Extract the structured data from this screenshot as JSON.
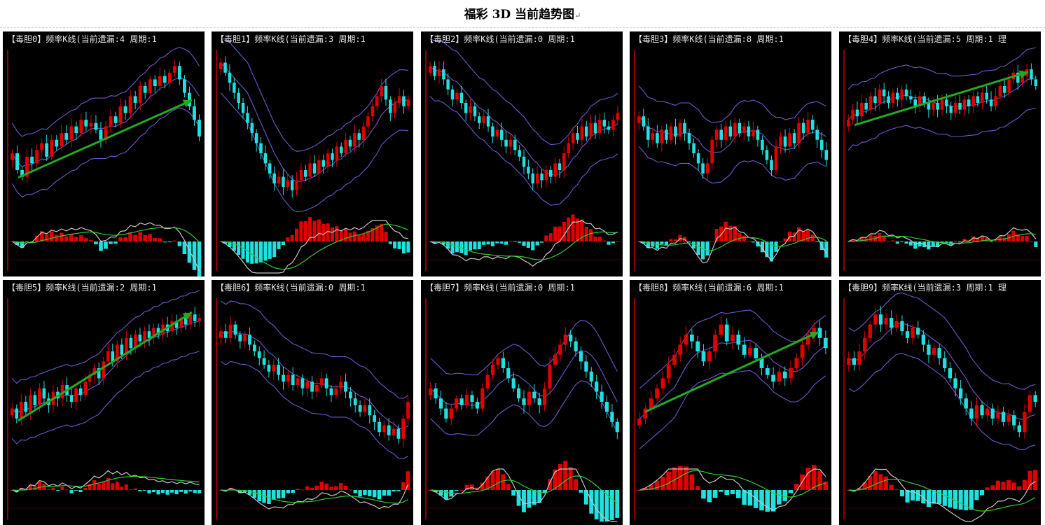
{
  "page": {
    "title": "福彩 3D 当前趋势图",
    "title_mark": "↵"
  },
  "colors": {
    "background": "#000000",
    "axis": "#c00000",
    "bull_candle": "#e00000",
    "bear_candle": "#20e0e0",
    "band": "#6a5acd",
    "trend_arrow": "#22aa22",
    "macd_fast": "#c8c8c8",
    "macd_slow": "#33cc33",
    "title_text": "#e6e6e6"
  },
  "chart_data": [
    {
      "type": "candlestick",
      "title": "【毒胆0】频率K线(当前遗漏:4 周期:1",
      "trend": "up",
      "arrow": true,
      "closes": [
        40,
        30,
        26,
        38,
        34,
        42,
        46,
        38,
        48,
        44,
        52,
        48,
        56,
        52,
        60,
        56,
        58,
        54,
        48,
        56,
        62,
        58,
        68,
        64,
        74,
        70,
        80,
        76,
        84,
        80,
        86,
        82,
        88,
        92,
        84,
        76,
        68,
        60,
        50
      ]
    },
    {
      "type": "candlestick",
      "title": "【毒胆1】频率K线(当前遗漏:3 周期:1",
      "trend": "v",
      "arrow": false,
      "closes": [
        94,
        88,
        82,
        76,
        70,
        64,
        58,
        52,
        46,
        40,
        34,
        28,
        22,
        26,
        20,
        24,
        18,
        24,
        30,
        26,
        34,
        28,
        36,
        32,
        40,
        36,
        44,
        40,
        48,
        44,
        52,
        48,
        56,
        62,
        68,
        74,
        80,
        72,
        64,
        70,
        74,
        68,
        72
      ]
    },
    {
      "type": "candlestick",
      "title": "【毒胆2】频率K线(当前遗漏:0 周期:1",
      "trend": "v",
      "arrow": false,
      "closes": [
        92,
        86,
        90,
        84,
        78,
        72,
        76,
        70,
        64,
        68,
        62,
        58,
        62,
        56,
        50,
        54,
        48,
        44,
        48,
        42,
        38,
        32,
        28,
        22,
        28,
        24,
        30,
        26,
        34,
        30,
        40,
        46,
        52,
        48,
        56,
        50,
        58,
        52,
        60,
        56,
        54,
        60,
        64
      ]
    },
    {
      "type": "candlestick",
      "title": "【毒胆3】频率K线(当前遗漏:8 周期:1",
      "trend": "range",
      "arrow": false,
      "closes": [
        62,
        56,
        48,
        52,
        46,
        54,
        48,
        56,
        50,
        58,
        52,
        46,
        40,
        34,
        28,
        34,
        48,
        54,
        48,
        56,
        50,
        58,
        52,
        56,
        50,
        54,
        48,
        42,
        36,
        30,
        44,
        50,
        44,
        52,
        46,
        58,
        52,
        60,
        54,
        48,
        42,
        36
      ]
    },
    {
      "type": "candlestick",
      "title": "【毒胆4】频率K线(当前遗漏:5 周期:1 理",
      "trend": "up",
      "arrow": true,
      "closes": [
        60,
        66,
        62,
        70,
        66,
        74,
        70,
        78,
        74,
        70,
        76,
        72,
        78,
        74,
        72,
        68,
        74,
        70,
        66,
        70,
        66,
        72,
        68,
        64,
        70,
        66,
        72,
        68,
        74,
        70,
        76,
        72,
        68,
        74,
        80,
        76,
        84,
        88,
        82,
        86,
        90,
        84,
        80
      ]
    },
    {
      "type": "candlestick",
      "title": "【毒胆5】频率K线(当前遗漏:2 周期:1",
      "trend": "up",
      "arrow": true,
      "closes": [
        36,
        30,
        40,
        34,
        44,
        38,
        48,
        42,
        38,
        46,
        42,
        50,
        44,
        40,
        48,
        44,
        52,
        56,
        60,
        54,
        64,
        70,
        64,
        74,
        68,
        78,
        72,
        80,
        76,
        82,
        78,
        84,
        80,
        86,
        82,
        88,
        84,
        90,
        86,
        92,
        88,
        90
      ]
    },
    {
      "type": "candlestick",
      "title": "【毒胆6】频率K线(当前遗漏:0 周期:1",
      "trend": "down",
      "arrow": false,
      "closes": [
        82,
        78,
        86,
        80,
        76,
        80,
        74,
        70,
        66,
        62,
        58,
        62,
        56,
        52,
        56,
        50,
        54,
        48,
        52,
        46,
        50,
        54,
        48,
        44,
        48,
        52,
        46,
        42,
        38,
        34,
        38,
        32,
        28,
        22,
        26,
        20,
        24,
        18,
        30,
        40
      ]
    },
    {
      "type": "candlestick",
      "title": "【毒胆7】频率K线(当前遗漏:0 周期:1",
      "trend": "mixed",
      "arrow": false,
      "closes": [
        48,
        42,
        36,
        30,
        36,
        42,
        38,
        44,
        40,
        36,
        48,
        56,
        62,
        66,
        60,
        54,
        48,
        42,
        38,
        46,
        42,
        38,
        48,
        62,
        68,
        74,
        80,
        76,
        70,
        64,
        58,
        52,
        46,
        40,
        34,
        28,
        22
      ]
    },
    {
      "type": "candlestick",
      "title": "【毒胆8】频率K线(当前遗漏:6 周期:1",
      "trend": "up",
      "arrow": true,
      "closes": [
        30,
        36,
        42,
        48,
        54,
        62,
        68,
        74,
        80,
        76,
        70,
        64,
        70,
        80,
        86,
        76,
        80,
        74,
        68,
        72,
        66,
        60,
        56,
        52,
        58,
        54,
        60,
        66,
        74,
        80,
        84,
        78,
        72
      ]
    },
    {
      "type": "candlestick",
      "title": "【毒胆9】频率K线(当前遗漏:3 周期:1 理",
      "trend": "down",
      "arrow": false,
      "closes": [
        66,
        62,
        70,
        78,
        86,
        92,
        86,
        90,
        84,
        88,
        82,
        78,
        84,
        80,
        74,
        68,
        72,
        66,
        60,
        54,
        48,
        42,
        36,
        30,
        38,
        32,
        36,
        30,
        34,
        28,
        32,
        26,
        22,
        34,
        44,
        40
      ]
    }
  ]
}
